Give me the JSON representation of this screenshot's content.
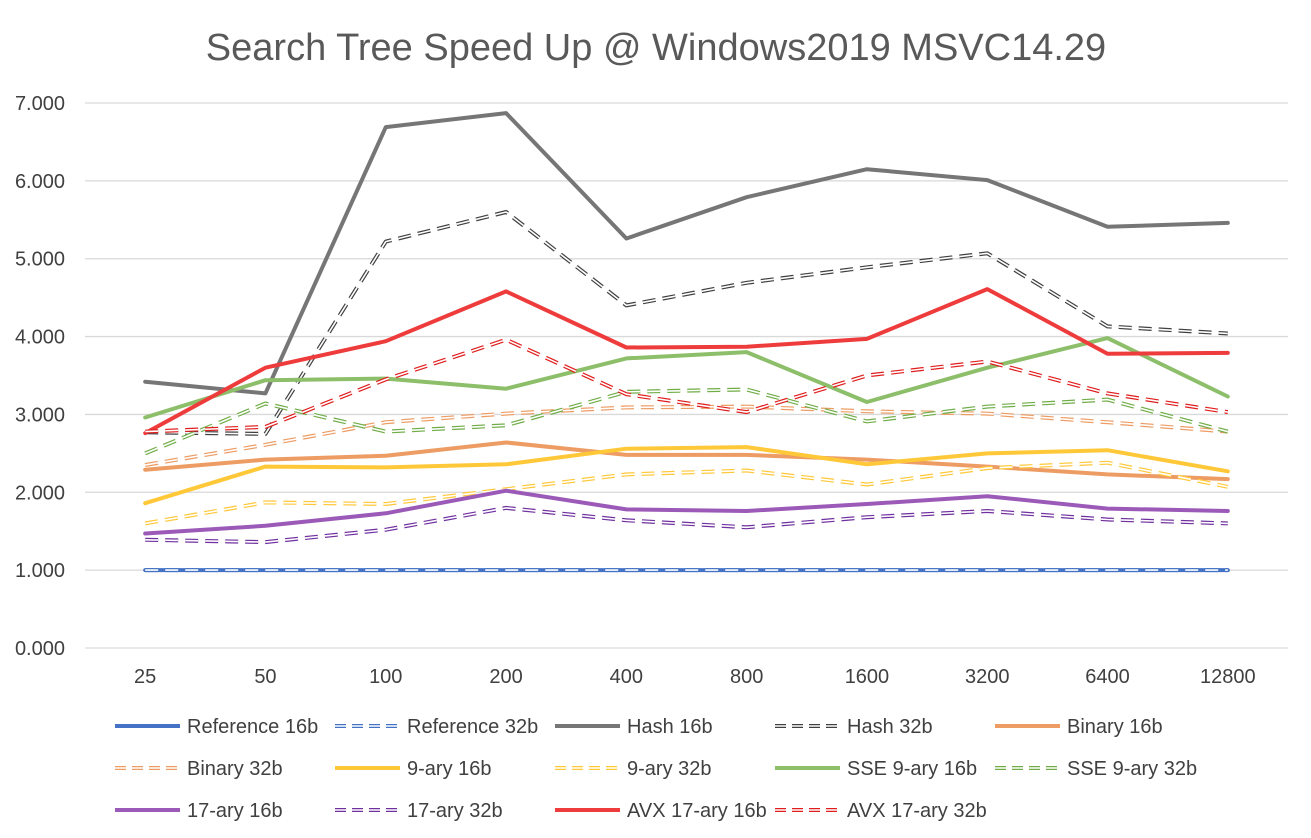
{
  "chart_data": {
    "type": "line",
    "title": "Search Tree Speed Up @ Windows2019 MSVC14.29",
    "xlabel": "",
    "ylabel": "",
    "categories": [
      "25",
      "50",
      "100",
      "200",
      "400",
      "800",
      "1600",
      "3200",
      "6400",
      "12800"
    ],
    "yticks": [
      "0.000",
      "1.000",
      "2.000",
      "3.000",
      "4.000",
      "5.000",
      "6.000",
      "7.000"
    ],
    "ylim": [
      0,
      7
    ],
    "grid": true,
    "legend_position": "bottom",
    "series": [
      {
        "name": "Reference 16b",
        "color": "#4472C4",
        "style": "solid",
        "values": [
          1,
          1,
          1,
          1,
          1,
          1,
          1,
          1,
          1,
          1
        ]
      },
      {
        "name": "Reference 32b",
        "color": "#4472C4",
        "style": "dashed",
        "values": [
          1,
          1,
          1,
          1,
          1,
          1,
          1,
          1,
          1,
          1
        ]
      },
      {
        "name": "Hash 16b",
        "color": "#767676",
        "style": "solid",
        "values": [
          3.42,
          3.27,
          6.69,
          6.87,
          5.26,
          5.79,
          6.15,
          6.01,
          5.41,
          5.46
        ]
      },
      {
        "name": "Hash 32b",
        "color": "#404040",
        "style": "dashed",
        "values": [
          2.77,
          2.75,
          5.22,
          5.6,
          4.4,
          4.69,
          4.89,
          5.07,
          4.13,
          4.04
        ]
      },
      {
        "name": "Binary 16b",
        "color": "#ED9C63",
        "style": "solid",
        "values": [
          2.29,
          2.42,
          2.47,
          2.64,
          2.48,
          2.48,
          2.42,
          2.33,
          2.23,
          2.17
        ]
      },
      {
        "name": "Binary 32b",
        "color": "#ED9C63",
        "style": "dashed",
        "values": [
          2.35,
          2.61,
          2.9,
          3.01,
          3.09,
          3.1,
          3.04,
          3.01,
          2.9,
          2.78
        ]
      },
      {
        "name": "9-ary 16b",
        "color": "#FFC839",
        "style": "solid",
        "values": [
          1.86,
          2.33,
          2.32,
          2.36,
          2.56,
          2.58,
          2.36,
          2.5,
          2.54,
          2.27
        ]
      },
      {
        "name": "9-ary 32b",
        "color": "#FFC839",
        "style": "dashed",
        "values": [
          1.6,
          1.87,
          1.85,
          2.04,
          2.23,
          2.28,
          2.1,
          2.31,
          2.38,
          2.07
        ]
      },
      {
        "name": "SSE 9-ary 16b",
        "color": "#8DBE6A",
        "style": "solid",
        "values": [
          2.96,
          3.44,
          3.46,
          3.33,
          3.72,
          3.8,
          3.16,
          3.6,
          3.98,
          3.23
        ]
      },
      {
        "name": "SSE 9-ary 32b",
        "color": "#70AD47",
        "style": "dashed",
        "values": [
          2.5,
          3.14,
          2.78,
          2.86,
          3.29,
          3.32,
          2.91,
          3.1,
          3.19,
          2.78
        ]
      },
      {
        "name": "17-ary 16b",
        "color": "#9B5AB8",
        "style": "solid",
        "values": [
          1.47,
          1.57,
          1.73,
          2.02,
          1.78,
          1.76,
          1.85,
          1.95,
          1.79,
          1.76
        ]
      },
      {
        "name": "17-ary 32b",
        "color": "#7030A0",
        "style": "dashed",
        "values": [
          1.39,
          1.36,
          1.52,
          1.8,
          1.64,
          1.55,
          1.68,
          1.76,
          1.65,
          1.6
        ]
      },
      {
        "name": "AVX 17-ary 16b",
        "color": "#EE3B3B",
        "style": "solid",
        "values": [
          2.76,
          3.6,
          3.94,
          4.58,
          3.86,
          3.87,
          3.97,
          4.61,
          3.78,
          3.79
        ]
      },
      {
        "name": "AVX 17-ary 32b",
        "color": "#E01E1E",
        "style": "dashed",
        "values": [
          2.78,
          2.84,
          3.45,
          3.96,
          3.26,
          3.03,
          3.5,
          3.68,
          3.27,
          3.03
        ]
      }
    ]
  }
}
